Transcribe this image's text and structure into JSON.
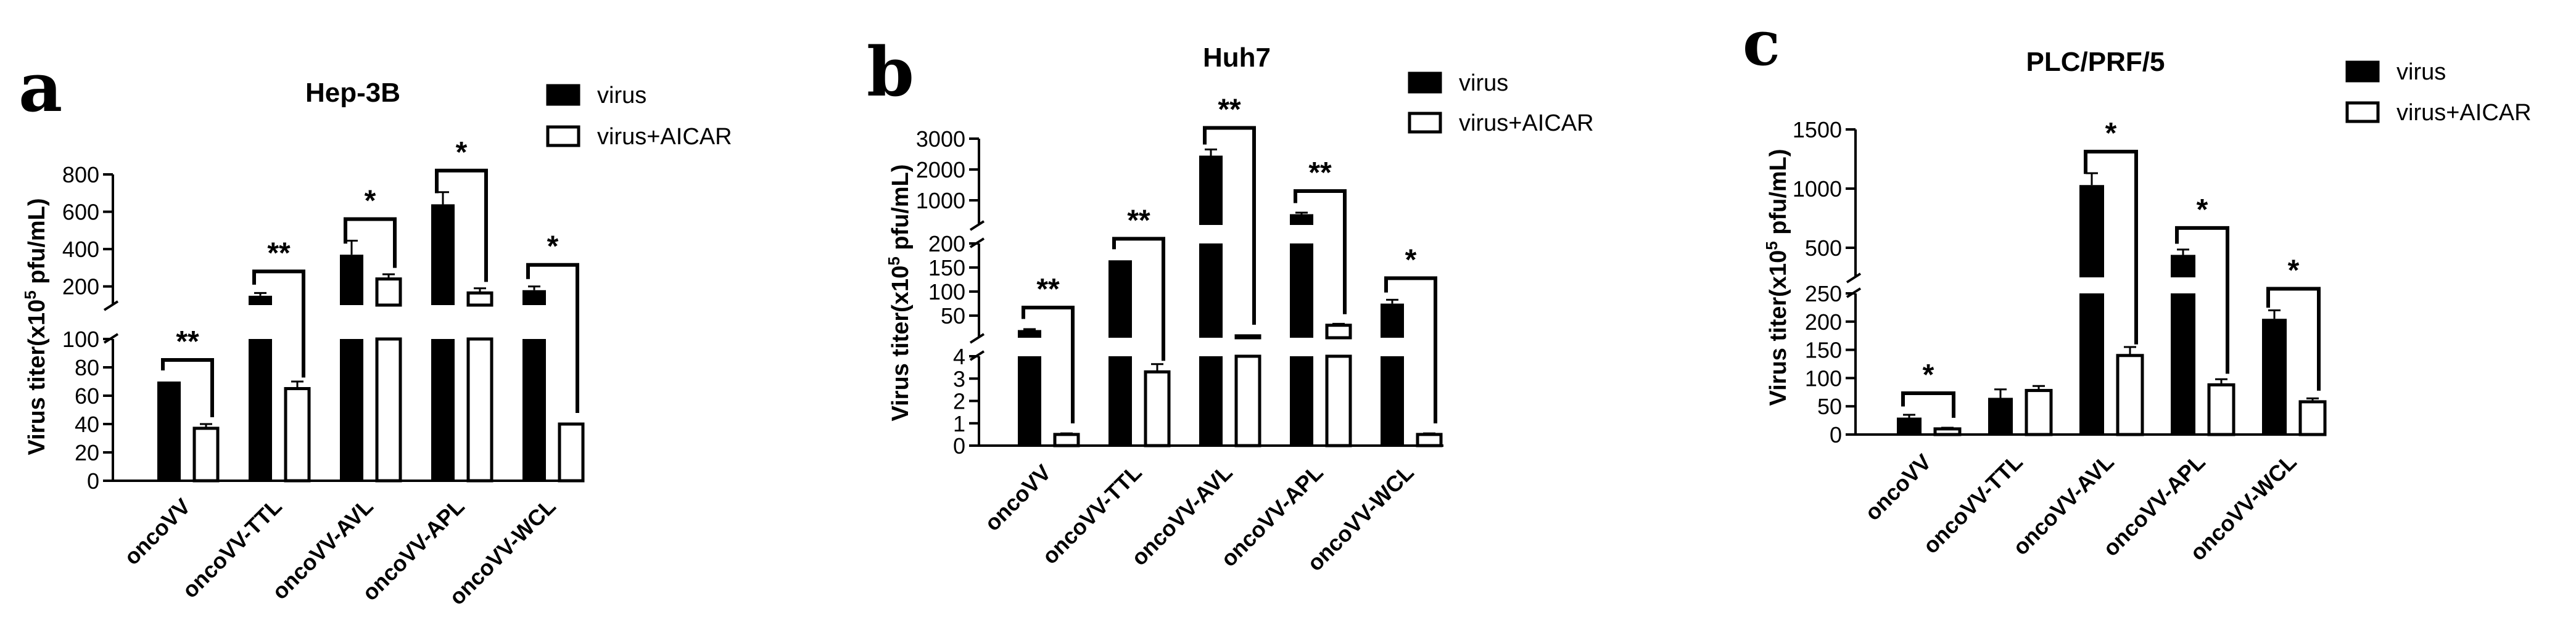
{
  "chart_data": [
    {
      "type": "bar",
      "panel": "a",
      "title": "Hep-3B",
      "ylabel": "Virus titer(x10^5 pfu/mL)",
      "ylabel_parts": {
        "pre": "Virus titer(x10",
        "sup": "5",
        "post": " pfu/mL)"
      },
      "categories": [
        "oncoVV",
        "oncoVV-TTL",
        "oncoVV-AVL",
        "oncoVV-APL",
        "oncoVV-WCL"
      ],
      "series": [
        {
          "name": "virus",
          "fill": "#000000",
          "values": [
            70,
            150,
            370,
            640,
            180
          ],
          "errors": [
            0,
            15,
            75,
            65,
            20
          ]
        },
        {
          "name": "virus+AICAR",
          "fill": "#ffffff",
          "values": [
            37,
            65,
            240,
            165,
            40
          ],
          "errors": [
            3,
            5,
            25,
            25,
            0
          ]
        }
      ],
      "significance": [
        "**",
        "**",
        "*",
        "*",
        "*"
      ],
      "y_axis_broken": true,
      "lower_ticks": [
        0,
        20,
        40,
        60,
        80,
        100
      ],
      "upper_ticks": [
        200,
        400,
        600,
        800
      ],
      "legend_position": "top-right"
    },
    {
      "type": "bar",
      "panel": "b",
      "title": "Huh7",
      "ylabel": "Virus titer(x10^5 pfu/mL)",
      "ylabel_parts": {
        "pre": "Virus titer(x10",
        "sup": "5",
        "post": " pfu/mL)"
      },
      "categories": [
        "oncoVV",
        "oncoVV-TTL",
        "oncoVV-AVL",
        "oncoVV-APL",
        "oncoVV-WCL"
      ],
      "series": [
        {
          "name": "virus",
          "fill": "#000000",
          "values": [
            20,
            165,
            2450,
            550,
            75
          ],
          "errors": [
            2,
            0,
            200,
            50,
            8
          ]
        },
        {
          "name": "virus+AICAR",
          "fill": "#ffffff",
          "values": [
            0.5,
            3.3,
            8,
            30,
            0.5
          ],
          "errors": [
            0.05,
            0.35,
            0,
            3,
            0.05
          ]
        }
      ],
      "significance": [
        "**",
        "**",
        "**",
        "**",
        "*"
      ],
      "y_axis_broken": true,
      "lower_ticks": [
        0,
        1,
        2,
        3,
        4
      ],
      "middle_ticks": [
        50,
        100,
        150,
        200
      ],
      "upper_ticks": [
        1000,
        2000,
        3000
      ],
      "legend_position": "top-right"
    },
    {
      "type": "bar",
      "panel": "c",
      "title": "PLC/PRF/5",
      "ylabel": "Virus titer(x10^5 pfu/mL)",
      "ylabel_parts": {
        "pre": "Virus titer(x10",
        "sup": "5",
        "post": " pfu/mL)"
      },
      "categories": [
        "oncoVV",
        "oncoVV-TTL",
        "oncoVV-AVL",
        "oncoVV-APL",
        "oncoVV-WCL"
      ],
      "series": [
        {
          "name": "virus",
          "fill": "#000000",
          "values": [
            30,
            65,
            1030,
            440,
            205
          ],
          "errors": [
            5,
            15,
            100,
            45,
            15
          ]
        },
        {
          "name": "virus+AICAR",
          "fill": "#ffffff",
          "values": [
            10,
            78,
            140,
            88,
            58
          ],
          "errors": [
            2,
            8,
            15,
            10,
            6
          ]
        }
      ],
      "significance": [
        "*",
        "",
        "*",
        "*",
        "*"
      ],
      "y_axis_broken": true,
      "lower_ticks": [
        0,
        50,
        100,
        150,
        200,
        250
      ],
      "upper_ticks": [
        500,
        1000,
        1500
      ],
      "legend_position": "top-right"
    }
  ]
}
